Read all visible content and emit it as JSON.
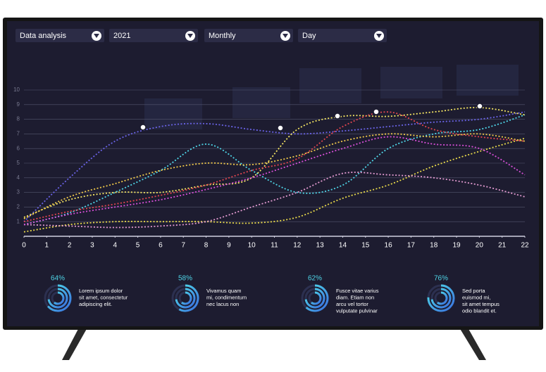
{
  "dropdowns": [
    "Data analysis",
    "2021",
    "Monthly",
    "Day"
  ],
  "chart_data": {
    "type": "line",
    "x": [
      0,
      2,
      4,
      6,
      8,
      10,
      12,
      14,
      16,
      18,
      20,
      22
    ],
    "xlim": [
      0,
      22
    ],
    "xticks": [
      0,
      1,
      2,
      3,
      4,
      5,
      6,
      7,
      8,
      9,
      10,
      11,
      12,
      13,
      14,
      15,
      16,
      17,
      18,
      19,
      20,
      21,
      22
    ],
    "ylim": [
      0,
      10
    ],
    "yticks": [
      1,
      2,
      3,
      4,
      5,
      6,
      7,
      8,
      9,
      10
    ],
    "grid": true,
    "series": [
      {
        "color": "#6a63e6",
        "values": [
          1,
          4,
          6.5,
          7.5,
          7.7,
          7.3,
          7,
          7.2,
          7.5,
          7.8,
          8,
          8.5
        ]
      },
      {
        "color": "#4fd6e8",
        "values": [
          0.8,
          1.6,
          3,
          4.5,
          6.3,
          4.5,
          3,
          3.5,
          6,
          7,
          7.3,
          8.3
        ]
      },
      {
        "color": "#f5e663",
        "values": [
          1.3,
          2.5,
          3,
          3,
          3.5,
          4,
          7.3,
          8.2,
          8.2,
          8.5,
          8.8,
          8.3
        ]
      },
      {
        "color": "#e8d94a",
        "values": [
          0.3,
          0.8,
          1,
          1,
          1,
          0.9,
          1.3,
          2.6,
          3.5,
          4.8,
          5.8,
          6.7
        ]
      },
      {
        "color": "#e29ad0",
        "values": [
          0.8,
          0.7,
          0.6,
          0.7,
          1,
          2,
          3,
          4.3,
          4.2,
          4,
          3.5,
          2.7
        ]
      },
      {
        "color": "#e0454f",
        "values": [
          1,
          1.7,
          2.2,
          2.8,
          3.5,
          4.5,
          5.3,
          7.5,
          8.5,
          7.3,
          6.8,
          6.5
        ]
      },
      {
        "color": "#d84fd8",
        "values": [
          0.8,
          1.5,
          2,
          2.5,
          3.2,
          4,
          5,
          6,
          6.8,
          6.3,
          6,
          4.2
        ]
      },
      {
        "color": "#f0c94a",
        "values": [
          1.2,
          2.7,
          3.6,
          4.5,
          5,
          4.9,
          5.5,
          6.5,
          7,
          6.8,
          7,
          6.5
        ]
      }
    ]
  },
  "stats": [
    {
      "value": 64,
      "label": "64%",
      "text": [
        "Lorem ipsum dolor",
        "sit amet, consectetur",
        "adipiscing elit."
      ]
    },
    {
      "value": 58,
      "label": "58%",
      "text": [
        "Vivamus quam",
        "mi, condimentum",
        "nec lacus non"
      ]
    },
    {
      "value": 62,
      "label": "62%",
      "text": [
        "Fusce vitae varius",
        "diam.  Etiam non",
        "arcu vel tortor",
        "vulputate pulvinar"
      ]
    },
    {
      "value": 76,
      "label": "76%",
      "text": [
        "Sed porta",
        "euismod mi,",
        "sit amet tempus",
        "odio blandit et."
      ]
    }
  ]
}
